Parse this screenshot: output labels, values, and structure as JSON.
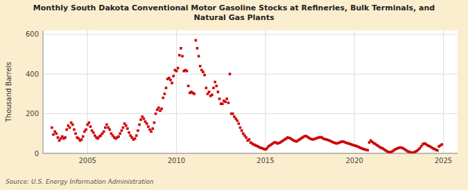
{
  "chart_data": {
    "type": "scatter",
    "title": "Monthly South Dakota Conventional Motor Gasoline Stocks at Refineries, Bulk Terminals, and\nNatural Gas Plants",
    "ylabel": "Thousand Barrels",
    "source": "Source: U.S. Energy Information Administration",
    "color": "#cc0000",
    "marker": "square",
    "grid": true,
    "xlim": [
      2002.5,
      2025.8
    ],
    "xticks": [
      2005,
      2010,
      2015,
      2020,
      2025
    ],
    "ylim": [
      0,
      620
    ],
    "yticks": [
      0,
      200,
      400,
      600
    ],
    "x": [
      2003.0,
      2003.083,
      2003.167,
      2003.25,
      2003.333,
      2003.417,
      2003.5,
      2003.583,
      2003.667,
      2003.75,
      2003.833,
      2003.917,
      2004.0,
      2004.083,
      2004.167,
      2004.25,
      2004.333,
      2004.417,
      2004.5,
      2004.583,
      2004.667,
      2004.75,
      2004.833,
      2004.917,
      2005.0,
      2005.083,
      2005.167,
      2005.25,
      2005.333,
      2005.417,
      2005.5,
      2005.583,
      2005.667,
      2005.75,
      2005.833,
      2005.917,
      2006.0,
      2006.083,
      2006.167,
      2006.25,
      2006.333,
      2006.417,
      2006.5,
      2006.583,
      2006.667,
      2006.75,
      2006.833,
      2006.917,
      2007.0,
      2007.083,
      2007.167,
      2007.25,
      2007.333,
      2007.417,
      2007.5,
      2007.583,
      2007.667,
      2007.75,
      2007.833,
      2007.917,
      2008.0,
      2008.083,
      2008.167,
      2008.25,
      2008.333,
      2008.417,
      2008.5,
      2008.583,
      2008.667,
      2008.75,
      2008.833,
      2008.917,
      2009.0,
      2009.083,
      2009.167,
      2009.25,
      2009.333,
      2009.417,
      2009.5,
      2009.583,
      2009.667,
      2009.75,
      2009.833,
      2009.917,
      2010.0,
      2010.083,
      2010.167,
      2010.25,
      2010.333,
      2010.417,
      2010.5,
      2010.583,
      2010.667,
      2010.75,
      2010.833,
      2010.917,
      2011.0,
      2011.083,
      2011.167,
      2011.25,
      2011.333,
      2011.417,
      2011.5,
      2011.583,
      2011.667,
      2011.75,
      2011.833,
      2011.917,
      2012.0,
      2012.083,
      2012.167,
      2012.25,
      2012.333,
      2012.417,
      2012.5,
      2012.583,
      2012.667,
      2012.75,
      2012.833,
      2012.917,
      2013.0,
      2013.083,
      2013.167,
      2013.25,
      2013.333,
      2013.417,
      2013.5,
      2013.583,
      2013.667,
      2013.75,
      2013.833,
      2013.917,
      2014.0,
      2014.083,
      2014.167,
      2014.25,
      2014.333,
      2014.417,
      2014.5,
      2014.583,
      2014.667,
      2014.75,
      2014.833,
      2014.917,
      2015.0,
      2015.083,
      2015.167,
      2015.25,
      2015.333,
      2015.417,
      2015.5,
      2015.583,
      2015.667,
      2015.75,
      2015.833,
      2015.917,
      2016.0,
      2016.083,
      2016.167,
      2016.25,
      2016.333,
      2016.417,
      2016.5,
      2016.583,
      2016.667,
      2016.75,
      2016.833,
      2016.917,
      2017.0,
      2017.083,
      2017.167,
      2017.25,
      2017.333,
      2017.417,
      2017.5,
      2017.583,
      2017.667,
      2017.75,
      2017.833,
      2017.917,
      2018.0,
      2018.083,
      2018.167,
      2018.25,
      2018.333,
      2018.417,
      2018.5,
      2018.583,
      2018.667,
      2018.75,
      2018.833,
      2018.917,
      2019.0,
      2019.083,
      2019.167,
      2019.25,
      2019.333,
      2019.417,
      2019.5,
      2019.583,
      2019.667,
      2019.75,
      2019.833,
      2019.917,
      2020.0,
      2020.083,
      2020.167,
      2020.25,
      2020.333,
      2020.417,
      2020.5,
      2020.583,
      2020.667,
      2020.75,
      2020.833,
      2020.917,
      2021.0,
      2021.083,
      2021.167,
      2021.25,
      2021.333,
      2021.417,
      2021.5,
      2021.583,
      2021.667,
      2021.75,
      2021.833,
      2021.917,
      2022.0,
      2022.083,
      2022.167,
      2022.25,
      2022.333,
      2022.417,
      2022.5,
      2022.583,
      2022.667,
      2022.75,
      2022.833,
      2022.917,
      2023.0,
      2023.083,
      2023.167,
      2023.25,
      2023.333,
      2023.417,
      2023.5,
      2023.583,
      2023.667,
      2023.75,
      2023.833,
      2023.917,
      2024.0,
      2024.083,
      2024.167,
      2024.25,
      2024.333,
      2024.417,
      2024.5,
      2024.583,
      2024.667,
      2024.75,
      2024.833,
      2024.917
    ],
    "values": [
      130,
      95,
      110,
      100,
      80,
      65,
      75,
      85,
      75,
      80,
      120,
      140,
      130,
      155,
      145,
      120,
      100,
      80,
      75,
      65,
      70,
      85,
      110,
      120,
      145,
      155,
      135,
      115,
      105,
      90,
      80,
      75,
      85,
      90,
      100,
      110,
      130,
      145,
      130,
      120,
      100,
      90,
      80,
      75,
      80,
      85,
      100,
      115,
      130,
      150,
      140,
      125,
      105,
      90,
      80,
      70,
      75,
      90,
      115,
      145,
      170,
      185,
      175,
      160,
      150,
      135,
      120,
      110,
      125,
      155,
      200,
      220,
      230,
      215,
      225,
      280,
      300,
      330,
      375,
      380,
      370,
      355,
      390,
      420,
      415,
      430,
      495,
      530,
      490,
      415,
      420,
      415,
      340,
      305,
      310,
      305,
      300,
      570,
      530,
      490,
      440,
      420,
      410,
      395,
      330,
      300,
      310,
      290,
      295,
      330,
      360,
      340,
      310,
      275,
      250,
      250,
      265,
      260,
      275,
      255,
      400,
      200,
      200,
      185,
      175,
      165,
      150,
      130,
      115,
      100,
      90,
      80,
      65,
      70,
      55,
      50,
      45,
      42,
      38,
      35,
      30,
      28,
      25,
      22,
      20,
      25,
      35,
      40,
      45,
      50,
      55,
      55,
      50,
      52,
      55,
      60,
      65,
      70,
      75,
      80,
      78,
      75,
      70,
      65,
      62,
      60,
      65,
      70,
      75,
      80,
      85,
      88,
      85,
      80,
      75,
      72,
      70,
      72,
      75,
      78,
      80,
      82,
      80,
      75,
      72,
      70,
      68,
      65,
      62,
      58,
      55,
      52,
      50,
      52,
      55,
      58,
      60,
      58,
      55,
      52,
      50,
      48,
      45,
      42,
      40,
      38,
      35,
      32,
      28,
      25,
      22,
      20,
      18,
      16,
      55,
      65,
      58,
      52,
      48,
      42,
      38,
      32,
      28,
      25,
      20,
      15,
      10,
      8,
      5,
      8,
      12,
      18,
      22,
      25,
      28,
      30,
      28,
      25,
      20,
      15,
      10,
      8,
      5,
      3,
      5,
      8,
      12,
      18,
      25,
      35,
      45,
      50,
      48,
      42,
      38,
      35,
      30,
      25,
      22,
      18,
      15,
      35,
      40,
      45
    ]
  }
}
